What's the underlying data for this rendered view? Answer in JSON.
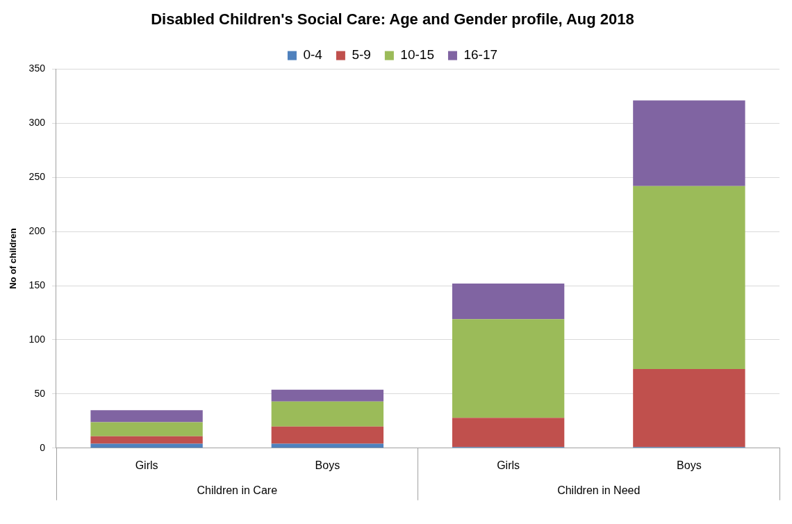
{
  "chart_data": {
    "type": "bar",
    "title": "Disabled Children's Social Care: Age and Gender profile, Aug 2018",
    "ylabel": "No of children",
    "categories": [
      "Girls",
      "Boys",
      "Girls",
      "Boys"
    ],
    "annotations": [
      "Children in Care",
      "Children in Need"
    ],
    "stacked": true,
    "series": [
      {
        "name": "0-4",
        "color": "#4f81bd",
        "values": [
          4,
          4,
          1,
          1
        ]
      },
      {
        "name": "5-9",
        "color": "#c0504d",
        "values": [
          7,
          16,
          27,
          72
        ]
      },
      {
        "name": "10-15",
        "color": "#9bbb59",
        "values": [
          13,
          23,
          91,
          169
        ]
      },
      {
        "name": "16-17",
        "color": "#8064a2",
        "values": [
          11,
          11,
          33,
          79
        ]
      }
    ],
    "ylim": [
      0,
      350
    ],
    "yticks": [
      0,
      50,
      100,
      150,
      200,
      250,
      300,
      350
    ],
    "grid": "y",
    "legend": "top"
  }
}
